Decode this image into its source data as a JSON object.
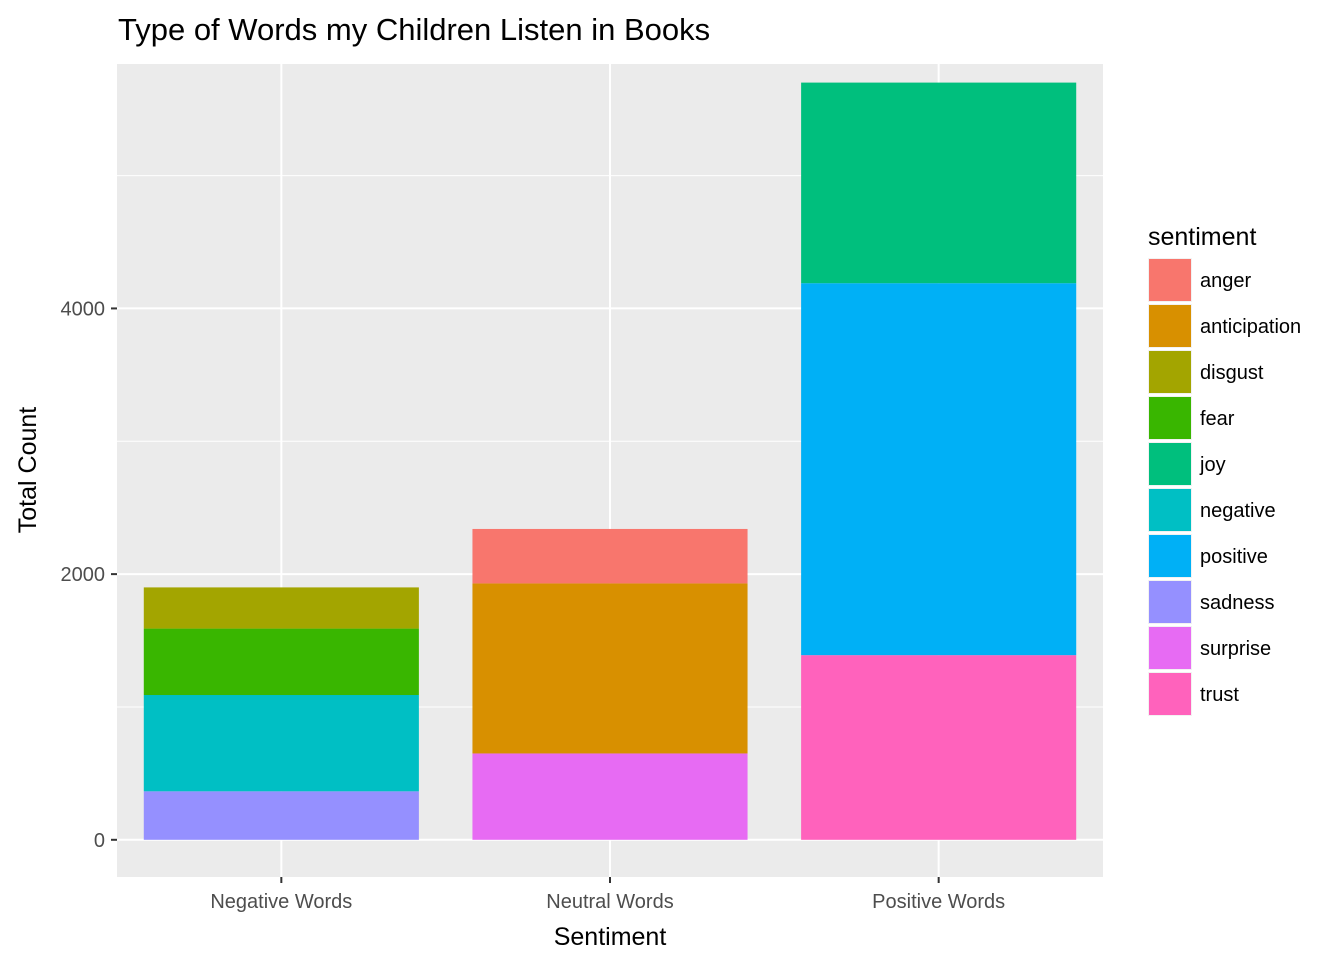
{
  "chart_data": {
    "type": "bar",
    "stacked": true,
    "title": "Type of Words my Children Listen in Books",
    "xlabel": "Sentiment",
    "ylabel": "Total Count",
    "categories": [
      "Negative Words",
      "Neutral Words",
      "Positive Words"
    ],
    "yticks": [
      0,
      2000,
      4000
    ],
    "ylim": [
      -280,
      5840
    ],
    "grid": true,
    "legend": {
      "title": "sentiment",
      "placement": "right",
      "entries": [
        "anger",
        "anticipation",
        "disgust",
        "fear",
        "joy",
        "negative",
        "positive",
        "sadness",
        "surprise",
        "trust"
      ]
    },
    "colors": {
      "anger": "#F8766D",
      "anticipation": "#D89000",
      "disgust": "#A3A500",
      "fear": "#39B600",
      "joy": "#00BF7D",
      "negative": "#00BFC4",
      "positive": "#00B0F6",
      "sadness": "#9590FF",
      "surprise": "#E76BF3",
      "trust": "#FF62BC"
    },
    "series": [
      {
        "name": "anger",
        "values": [
          0,
          410,
          0
        ]
      },
      {
        "name": "anticipation",
        "values": [
          0,
          1280,
          0
        ]
      },
      {
        "name": "disgust",
        "values": [
          310,
          0,
          0
        ]
      },
      {
        "name": "fear",
        "values": [
          500,
          0,
          0
        ]
      },
      {
        "name": "joy",
        "values": [
          0,
          0,
          1510
        ]
      },
      {
        "name": "negative",
        "values": [
          725,
          0,
          0
        ]
      },
      {
        "name": "positive",
        "values": [
          0,
          0,
          2800
        ]
      },
      {
        "name": "sadness",
        "values": [
          365,
          0,
          0
        ]
      },
      {
        "name": "surprise",
        "values": [
          0,
          650,
          0
        ]
      },
      {
        "name": "trust",
        "values": [
          0,
          0,
          1390
        ]
      }
    ]
  }
}
